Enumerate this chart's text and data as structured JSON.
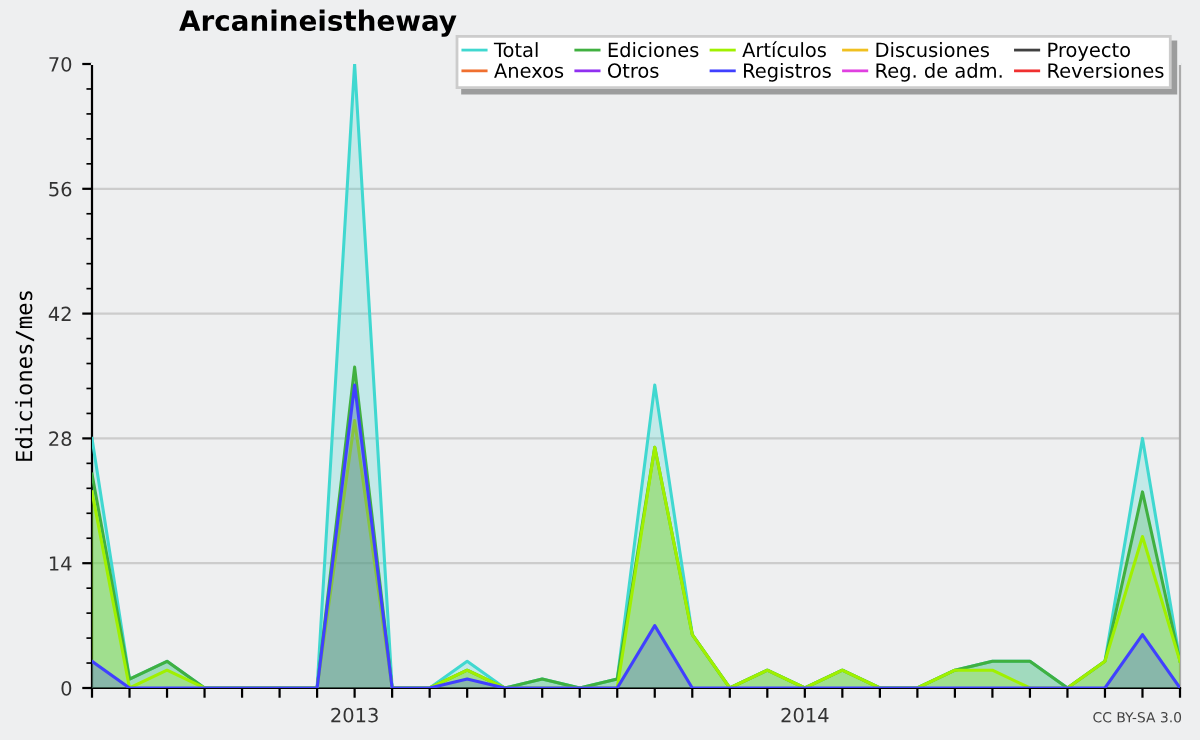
{
  "chart_data": {
    "type": "area",
    "title": "Arcanineistheway",
    "ylabel": "Ediciones/mes",
    "categories": [
      null,
      null,
      null,
      null,
      null,
      null,
      null,
      "2013",
      null,
      null,
      null,
      null,
      null,
      null,
      null,
      null,
      null,
      null,
      null,
      "2014",
      null,
      null,
      null,
      null,
      null,
      null,
      null,
      null,
      null,
      null
    ],
    "series": [
      {
        "name": "Total",
        "color": "#40d8d0",
        "values": [
          28,
          1,
          3,
          0,
          0,
          0,
          0,
          70,
          0,
          0,
          3,
          0,
          1,
          0,
          1,
          34,
          6,
          0,
          2,
          0,
          2,
          0,
          0,
          2,
          3,
          3,
          0,
          3,
          28,
          3
        ]
      },
      {
        "name": "Ediciones",
        "color": "#40b040",
        "values": [
          24,
          1,
          3,
          0,
          0,
          0,
          0,
          36,
          0,
          0,
          2,
          0,
          1,
          0,
          1,
          27,
          6,
          0,
          2,
          0,
          2,
          0,
          0,
          2,
          3,
          3,
          0,
          3,
          22,
          3
        ]
      },
      {
        "name": "Artículos",
        "color": "#a0f000",
        "values": [
          22,
          0,
          2,
          0,
          0,
          0,
          0,
          30,
          0,
          0,
          2,
          0,
          0,
          0,
          0,
          27,
          6,
          0,
          2,
          0,
          2,
          0,
          0,
          2,
          2,
          0,
          0,
          3,
          17,
          3
        ]
      },
      {
        "name": "Discusiones",
        "color": "#f0c020",
        "values": [
          null,
          null,
          null,
          null,
          null,
          null,
          null,
          null,
          null,
          null,
          null,
          null,
          null,
          null,
          null,
          null,
          null,
          null,
          null,
          null,
          null,
          null,
          null,
          null,
          null,
          null,
          null,
          null,
          null,
          null
        ]
      },
      {
        "name": "Proyecto",
        "color": "#404040",
        "values": [
          null,
          null,
          null,
          null,
          null,
          null,
          null,
          null,
          null,
          null,
          null,
          null,
          null,
          null,
          null,
          null,
          null,
          null,
          null,
          null,
          null,
          null,
          null,
          null,
          null,
          null,
          null,
          null,
          null,
          null
        ]
      },
      {
        "name": "Anexos",
        "color": "#f07030",
        "values": [
          null,
          null,
          null,
          null,
          null,
          null,
          null,
          null,
          null,
          null,
          null,
          null,
          null,
          null,
          null,
          null,
          null,
          null,
          null,
          null,
          null,
          null,
          null,
          null,
          null,
          null,
          null,
          null,
          null,
          null
        ]
      },
      {
        "name": "Otros",
        "color": "#9030f0",
        "values": [
          null,
          null,
          null,
          null,
          null,
          null,
          null,
          null,
          null,
          null,
          null,
          null,
          null,
          null,
          null,
          null,
          null,
          null,
          null,
          null,
          null,
          null,
          null,
          null,
          null,
          null,
          null,
          null,
          null,
          null
        ]
      },
      {
        "name": "Registros",
        "color": "#4040ff",
        "values": [
          3,
          0,
          0,
          0,
          0,
          0,
          0,
          34,
          0,
          0,
          1,
          0,
          0,
          0,
          0,
          7,
          0,
          0,
          0,
          0,
          0,
          0,
          0,
          0,
          0,
          0,
          0,
          0,
          6,
          0
        ]
      },
      {
        "name": "Reg. de adm.",
        "color": "#e040e0",
        "values": [
          null,
          null,
          null,
          null,
          null,
          null,
          null,
          null,
          null,
          null,
          null,
          null,
          null,
          null,
          null,
          null,
          null,
          null,
          null,
          null,
          null,
          null,
          null,
          null,
          null,
          null,
          null,
          null,
          null,
          null
        ]
      },
      {
        "name": "Reversiones",
        "color": "#f03030",
        "values": [
          null,
          null,
          null,
          null,
          null,
          null,
          null,
          null,
          null,
          null,
          null,
          null,
          null,
          null,
          null,
          null,
          null,
          null,
          null,
          null,
          null,
          null,
          null,
          null,
          null,
          null,
          null,
          null,
          null,
          null
        ]
      }
    ],
    "ylim": [
      0,
      70
    ],
    "yticks": [
      0,
      14,
      28,
      42,
      56,
      70
    ],
    "grid": "y",
    "legend": "top right",
    "annotations": [
      "CC BY-SA 3.0"
    ]
  }
}
